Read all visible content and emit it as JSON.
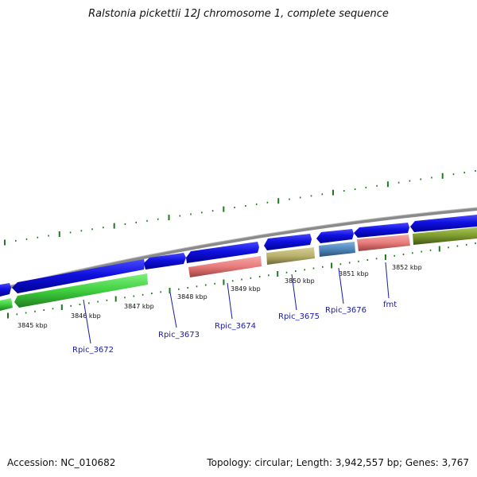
{
  "title": "Ralstonia pickettii 12J chromosome 1, complete sequence",
  "footer": {
    "accession": "Accession: NC_010682",
    "topology": "Topology: circular; Length: 3,942,557 bp; Genes: 3,767"
  },
  "ticks": [
    "3845 kbp",
    "3846 kbp",
    "3847 kbp",
    "3848 kbp",
    "3849 kbp",
    "3850 kbp",
    "3851 kbp",
    "3852 kbp"
  ],
  "genes": [
    "Rpic_3672",
    "Rpic_3673",
    "Rpic_3674",
    "Rpic_3675",
    "Rpic_3676",
    "fmt"
  ],
  "colors": {
    "cds": "#1010e0",
    "green": "#3fcf3f",
    "pink": "#e87b7b",
    "khaki": "#b8b06a",
    "steel": "#4f86b8",
    "olive": "#7c9a2c",
    "ruler": "#1e7a1e",
    "backbone": "#8a8a8a"
  }
}
